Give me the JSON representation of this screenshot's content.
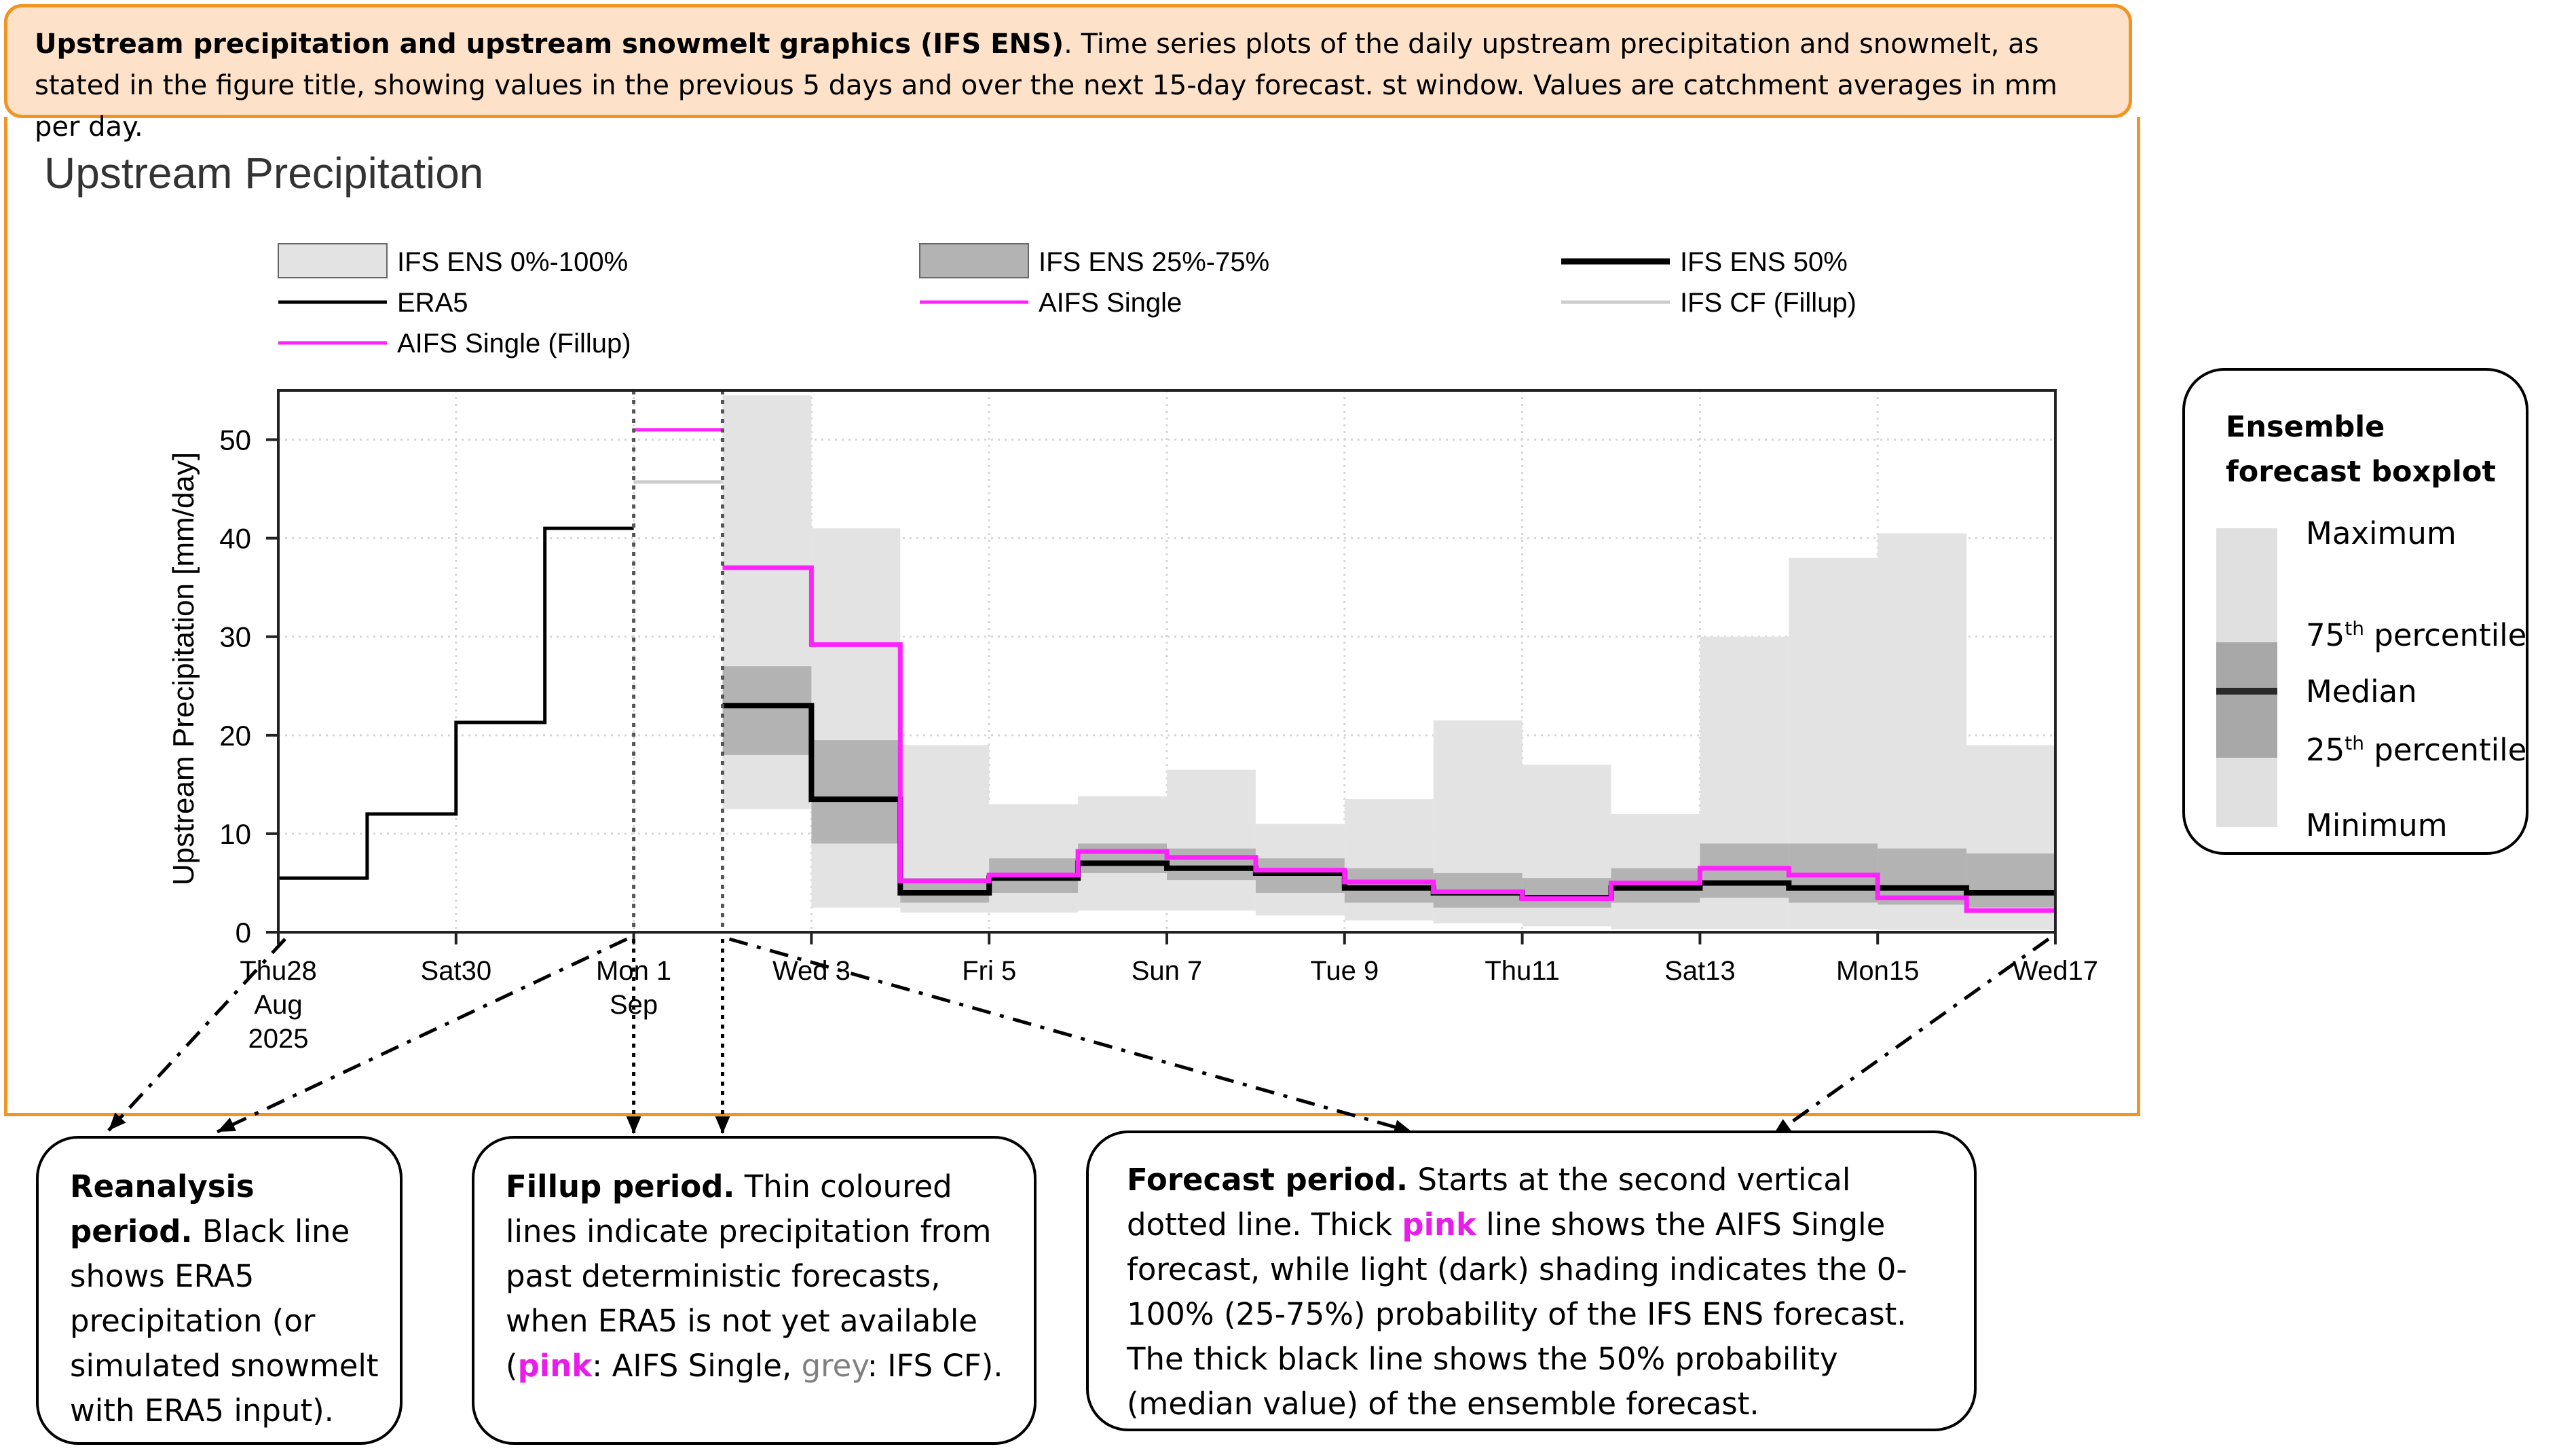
{
  "header": {
    "title": "Upstream precipitation and upstream snowmelt graphics (IFS ENS)",
    "text": ". Time series plots of the daily upstream precipitation and snowmelt, as stated in the figure title, showing values in the previous 5 days and over the next 15-day forecast. st window. Values are catchment averages in mm per day."
  },
  "chart_data": {
    "type": "line",
    "title": "Upstream Precipitation",
    "ylabel": "Upstream Precipitation [mm/day]",
    "xlabel": "",
    "ylim": [
      0,
      55
    ],
    "yticks": [
      0,
      10,
      20,
      30,
      40,
      50
    ],
    "xlim_days": [
      0,
      20
    ],
    "xticks": [
      {
        "label": "Thu28\nAug\n2025",
        "day": 0
      },
      {
        "label": "Sat30",
        "day": 2
      },
      {
        "label": "Mon 1\nSep",
        "day": 4
      },
      {
        "label": "Wed 3",
        "day": 6
      },
      {
        "label": "Fri 5",
        "day": 8
      },
      {
        "label": "Sun 7",
        "day": 10
      },
      {
        "label": "Tue 9",
        "day": 12
      },
      {
        "label": "Thu11",
        "day": 14
      },
      {
        "label": "Sat13",
        "day": 16
      },
      {
        "label": "Mon15",
        "day": 18
      },
      {
        "label": "Wed17",
        "day": 20
      }
    ],
    "grid": true,
    "legend": [
      {
        "label": "IFS ENS 0%-100%",
        "kind": "fill",
        "color": "#e3e3e3"
      },
      {
        "label": "IFS ENS 25%-75%",
        "kind": "fill",
        "color": "#b3b3b3"
      },
      {
        "label": "IFS ENS 50%",
        "kind": "line",
        "color": "#000000",
        "thick": true
      },
      {
        "label": "ERA5",
        "kind": "line",
        "color": "#000000"
      },
      {
        "label": "AIFS Single",
        "kind": "line",
        "color": "#ff22ff"
      },
      {
        "label": "IFS CF (Fillup)",
        "kind": "line",
        "color": "#cccccc"
      },
      {
        "label": "AIFS Single (Fillup)",
        "kind": "line",
        "color": "#ff22ff"
      }
    ],
    "period_lines_days": [
      4,
      5
    ],
    "era5": {
      "start_day": 0,
      "values": [
        5.5,
        12,
        21.3,
        41
      ]
    },
    "ifs_cf_fillup": {
      "start_day": 4,
      "values": [
        45.7
      ]
    },
    "aifs_fillup": {
      "start_day": 4,
      "values": [
        51
      ]
    },
    "forecast_start_day": 5,
    "ens_min": [
      12.5,
      2.5,
      2,
      2,
      2.2,
      2.2,
      1.7,
      1.2,
      0.9,
      0.6,
      0.3,
      0.3,
      0.3,
      0.2,
      0.2
    ],
    "ens_max": [
      54.5,
      41,
      19,
      13,
      13.8,
      16.5,
      11,
      13.5,
      21.5,
      17,
      12,
      30,
      38,
      40.5,
      19
    ],
    "ens_p25": [
      18,
      9,
      3,
      4,
      6,
      5.3,
      4,
      3,
      2.5,
      2.5,
      3,
      3.5,
      3,
      2.8,
      2.5
    ],
    "ens_p75": [
      27,
      19.5,
      5.5,
      7.5,
      9,
      8.5,
      7.5,
      6.5,
      6,
      5.5,
      6.5,
      9,
      9,
      8.5,
      8
    ],
    "ens_median": [
      23,
      13.5,
      4,
      5.5,
      7,
      6.5,
      6,
      4.5,
      4,
      3.5,
      4.5,
      5,
      4.5,
      4.5,
      4
    ],
    "aifs_single": [
      37,
      29.2,
      5.2,
      5.8,
      8.2,
      7.6,
      6.3,
      5.1,
      4.1,
      3.4,
      5,
      6.5,
      5.8,
      3.5,
      2.2
    ]
  },
  "callouts": {
    "reanalysis": {
      "title": "Reanalysis period.",
      "text": " Black line shows ERA5 precipitation (or simulated snowmelt with ERA5 input)."
    },
    "fillup": {
      "title": "Fillup period.",
      "text1": " Thin coloured lines indicate precipitation from past deterministic forecasts, when ERA5 is not yet available (",
      "pink": "pink",
      "text2": ": AIFS Single, ",
      "grey": "grey",
      "text3": ": IFS CF)."
    },
    "forecast": {
      "title": "Forecast period.",
      "text1": " Starts at the second vertical dotted line. Thick ",
      "pink": "pink",
      "text2": " line shows the AIFS Single forecast, while light (dark) shading indicates the 0-100% (25-75%) probability of the IFS ENS forecast. The thick black line shows the 50% probability (median value) of the ensemble forecast."
    }
  },
  "boxplot_legend": {
    "title": "Ensemble forecast boxplot",
    "maximum": "Maximum",
    "p75": "75",
    "p75_sup": "th",
    "p75_suffix": " percentile",
    "median": "Median",
    "p25": "25",
    "p25_sup": "th",
    "p25_suffix": " percentile",
    "minimum": "Minimum",
    "colors": {
      "outer": "#e0e0e0",
      "inner": "#a8a8a8",
      "median": "#2a2a2a"
    }
  }
}
